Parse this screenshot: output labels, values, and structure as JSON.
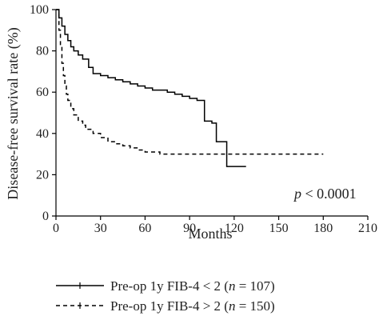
{
  "chart_data": {
    "type": "line",
    "step": true,
    "xlabel": "Months",
    "ylabel": "Disease-free survival rate (%)",
    "xlim": [
      0,
      210
    ],
    "ylim": [
      0,
      100
    ],
    "x_ticks": [
      0,
      30,
      60,
      90,
      120,
      150,
      180,
      210
    ],
    "y_ticks": [
      0,
      20,
      40,
      60,
      80,
      100
    ],
    "annotation": {
      "prefix": "p",
      "text": " < 0.0001"
    },
    "legend_position": "bottom",
    "series": [
      {
        "name_prefix": "Pre-op 1y FIB-4 < 2 (",
        "name_n": "n",
        "name_suffix": " = 107)",
        "style": "solid",
        "x": [
          0,
          2,
          4,
          6,
          8,
          10,
          12,
          15,
          18,
          22,
          25,
          30,
          35,
          40,
          45,
          50,
          55,
          60,
          65,
          70,
          75,
          80,
          85,
          90,
          95,
          100,
          105,
          108,
          112,
          115,
          120,
          128
        ],
        "y": [
          100,
          96,
          92,
          88,
          85,
          82,
          80,
          78,
          76,
          72,
          69,
          68,
          67,
          66,
          65,
          64,
          63,
          62,
          61,
          61,
          60,
          59,
          58,
          57,
          56,
          46,
          45,
          36,
          36,
          24,
          24,
          24
        ]
      },
      {
        "name_prefix": "Pre-op 1y FIB-4 > 2 (",
        "name_n": "n",
        "name_suffix": " = 150)",
        "style": "dashed",
        "x": [
          0,
          2,
          3,
          4,
          5,
          6,
          7,
          8,
          10,
          12,
          15,
          18,
          20,
          25,
          30,
          35,
          40,
          45,
          50,
          55,
          60,
          65,
          70,
          80,
          100,
          120,
          150,
          180
        ],
        "y": [
          100,
          90,
          82,
          74,
          68,
          63,
          59,
          56,
          52,
          49,
          46,
          44,
          42,
          40,
          38,
          36,
          35,
          34,
          33,
          32,
          31,
          31,
          30,
          30,
          30,
          30,
          30,
          30
        ]
      }
    ]
  }
}
